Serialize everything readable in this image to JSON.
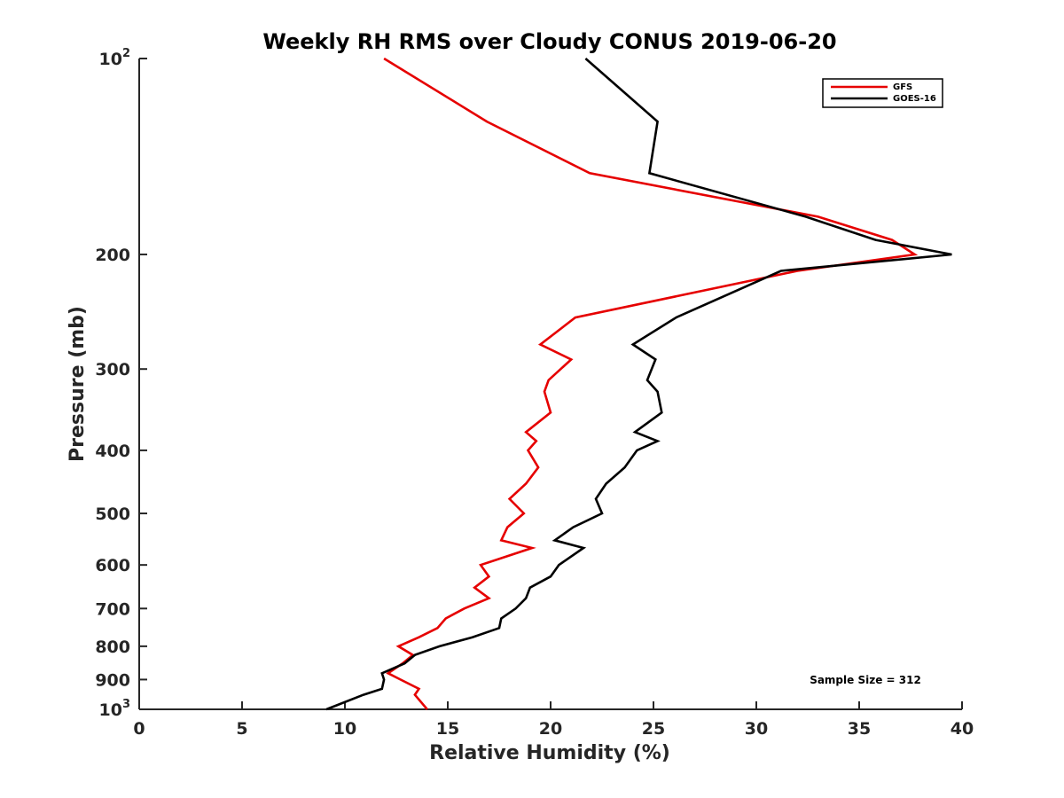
{
  "chart_data": {
    "type": "line",
    "title": "Weekly RH RMS over Cloudy CONUS 2019-06-20",
    "xlabel": "Relative Humidity (%)",
    "ylabel": "Pressure (mb)",
    "xlim": [
      0,
      40
    ],
    "ylim": [
      100,
      1000
    ],
    "y_scale": "log",
    "y_reversed": true,
    "grid": false,
    "legend_position": "top-right",
    "x_ticks": [
      {
        "value": 0,
        "label": "0"
      },
      {
        "value": 5,
        "label": "5"
      },
      {
        "value": 10,
        "label": "10"
      },
      {
        "value": 15,
        "label": "15"
      },
      {
        "value": 20,
        "label": "20"
      },
      {
        "value": 25,
        "label": "25"
      },
      {
        "value": 30,
        "label": "30"
      },
      {
        "value": 35,
        "label": "35"
      },
      {
        "value": 40,
        "label": "40"
      }
    ],
    "y_ticks": [
      {
        "value": 100,
        "base": "10",
        "exp": "2"
      },
      {
        "value": 200,
        "label": "200"
      },
      {
        "value": 300,
        "label": "300"
      },
      {
        "value": 400,
        "label": "400"
      },
      {
        "value": 500,
        "label": "500"
      },
      {
        "value": 600,
        "label": "600"
      },
      {
        "value": 700,
        "label": "700"
      },
      {
        "value": 800,
        "label": "800"
      },
      {
        "value": 900,
        "label": "900"
      },
      {
        "value": 1000,
        "base": "10",
        "exp": "3"
      }
    ],
    "series": [
      {
        "name": "GFS",
        "color": "#e60000",
        "points": [
          [
            11.9,
            100
          ],
          [
            16.9,
            125
          ],
          [
            21.9,
            150
          ],
          [
            33.0,
            175
          ],
          [
            36.6,
            190
          ],
          [
            37.7,
            200
          ],
          [
            32.0,
            212
          ],
          [
            21.2,
            250
          ],
          [
            19.5,
            275
          ],
          [
            21.0,
            290
          ],
          [
            19.9,
            312
          ],
          [
            19.7,
            325
          ],
          [
            20.0,
            350
          ],
          [
            18.8,
            375
          ],
          [
            19.3,
            387
          ],
          [
            18.9,
            400
          ],
          [
            19.4,
            425
          ],
          [
            18.8,
            450
          ],
          [
            18.0,
            475
          ],
          [
            18.7,
            500
          ],
          [
            17.9,
            525
          ],
          [
            17.6,
            550
          ],
          [
            19.1,
            565
          ],
          [
            16.6,
            600
          ],
          [
            17.0,
            625
          ],
          [
            16.3,
            650
          ],
          [
            17.0,
            675
          ],
          [
            15.8,
            700
          ],
          [
            14.9,
            725
          ],
          [
            14.5,
            750
          ],
          [
            13.6,
            775
          ],
          [
            12.6,
            800
          ],
          [
            13.3,
            825
          ],
          [
            12.8,
            850
          ],
          [
            12.1,
            880
          ],
          [
            12.7,
            900
          ],
          [
            13.6,
            930
          ],
          [
            13.4,
            950
          ],
          [
            14.0,
            1000
          ]
        ]
      },
      {
        "name": "GOES-16",
        "color": "#000000",
        "points": [
          [
            21.7,
            100
          ],
          [
            25.2,
            125
          ],
          [
            24.8,
            150
          ],
          [
            32.4,
            175
          ],
          [
            35.8,
            190
          ],
          [
            39.5,
            200
          ],
          [
            31.2,
            212
          ],
          [
            26.1,
            250
          ],
          [
            24.0,
            275
          ],
          [
            25.1,
            290
          ],
          [
            24.7,
            312
          ],
          [
            25.2,
            325
          ],
          [
            25.4,
            350
          ],
          [
            24.1,
            375
          ],
          [
            25.2,
            387
          ],
          [
            24.2,
            400
          ],
          [
            23.6,
            425
          ],
          [
            22.7,
            450
          ],
          [
            22.2,
            475
          ],
          [
            22.5,
            500
          ],
          [
            21.1,
            525
          ],
          [
            20.2,
            550
          ],
          [
            21.6,
            565
          ],
          [
            20.4,
            600
          ],
          [
            20.0,
            625
          ],
          [
            19.0,
            650
          ],
          [
            18.8,
            675
          ],
          [
            18.3,
            700
          ],
          [
            17.6,
            725
          ],
          [
            17.5,
            750
          ],
          [
            16.2,
            775
          ],
          [
            14.6,
            800
          ],
          [
            13.4,
            825
          ],
          [
            12.9,
            850
          ],
          [
            11.8,
            880
          ],
          [
            11.9,
            900
          ],
          [
            11.8,
            930
          ],
          [
            10.9,
            950
          ],
          [
            9.1,
            1000
          ]
        ]
      }
    ],
    "annotations": [
      "Sample Size = 312"
    ]
  }
}
